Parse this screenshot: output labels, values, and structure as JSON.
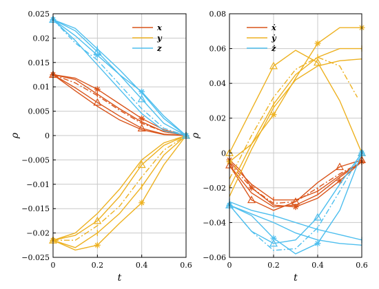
{
  "chart_data": [
    {
      "type": "line",
      "xlabel": "t",
      "ylabel": "ρ",
      "xlim": [
        0,
        0.6
      ],
      "ylim": [
        -0.025,
        0.025
      ],
      "xticks": [
        "0",
        "0.2",
        "0.4",
        "0.6"
      ],
      "yticks": [
        "-0.025",
        "-0.02",
        "-0.015",
        "-0.01",
        "-0.005",
        "0",
        "0.005",
        "0.01",
        "0.015",
        "0.02",
        "0.025"
      ],
      "grid": true,
      "legend_position": "top-right",
      "legend": [
        {
          "label": "x",
          "color": "#d95319"
        },
        {
          "label": "y",
          "color": "#edb120"
        },
        {
          "label": "z",
          "color": "#4dbeee"
        }
      ],
      "series": [
        {
          "group": "x",
          "color": "#d95319",
          "style": "solid",
          "marker": "asterisk",
          "x": [
            0,
            0.1,
            0.2,
            0.3,
            0.4,
            0.5,
            0.6
          ],
          "y": [
            0.0125,
            0.0118,
            0.0095,
            0.0065,
            0.0035,
            0.0012,
            0
          ]
        },
        {
          "group": "x",
          "color": "#d95319",
          "style": "solid",
          "marker": "tick",
          "x": [
            0,
            0.1,
            0.2,
            0.3,
            0.4,
            0.5,
            0.6
          ],
          "y": [
            0.0125,
            0.0115,
            0.0085,
            0.0055,
            0.0028,
            0.0008,
            0
          ]
        },
        {
          "group": "x",
          "color": "#d95319",
          "style": "dashdot",
          "marker": "none",
          "x": [
            0,
            0.1,
            0.2,
            0.3,
            0.4,
            0.5,
            0.6
          ],
          "y": [
            0.0125,
            0.0108,
            0.0082,
            0.0052,
            0.0025,
            0.0008,
            0
          ]
        },
        {
          "group": "x",
          "color": "#d95319",
          "style": "solid",
          "marker": "triangle",
          "x": [
            0,
            0.1,
            0.2,
            0.3,
            0.4,
            0.5,
            0.6
          ],
          "y": [
            0.0125,
            0.0098,
            0.0068,
            0.004,
            0.0015,
            0.0003,
            0
          ]
        },
        {
          "group": "x",
          "color": "#d95319",
          "style": "solid",
          "marker": "none",
          "x": [
            0,
            0.1,
            0.2,
            0.3,
            0.4,
            0.5,
            0.6
          ],
          "y": [
            0.0125,
            0.0092,
            0.006,
            0.0032,
            0.0012,
            0.0002,
            0
          ]
        },
        {
          "group": "y",
          "color": "#edb120",
          "style": "solid",
          "marker": "asterisk",
          "x": [
            0,
            0.1,
            0.2,
            0.3,
            0.4,
            0.5,
            0.6
          ],
          "y": [
            -0.0215,
            -0.0235,
            -0.0225,
            -0.018,
            -0.0138,
            -0.006,
            0
          ]
        },
        {
          "group": "y",
          "color": "#edb120",
          "style": "solid",
          "marker": "tick",
          "x": [
            0,
            0.1,
            0.2,
            0.3,
            0.4,
            0.5,
            0.6
          ],
          "y": [
            -0.0215,
            -0.023,
            -0.02,
            -0.016,
            -0.0105,
            -0.004,
            0
          ]
        },
        {
          "group": "y",
          "color": "#edb120",
          "style": "dashdot",
          "marker": "none",
          "x": [
            0,
            0.1,
            0.2,
            0.3,
            0.4,
            0.5,
            0.6
          ],
          "y": [
            -0.0215,
            -0.0215,
            -0.0185,
            -0.0145,
            -0.0085,
            -0.003,
            0
          ]
        },
        {
          "group": "y",
          "color": "#edb120",
          "style": "solid",
          "marker": "triangle",
          "x": [
            0,
            0.1,
            0.2,
            0.3,
            0.4,
            0.5,
            0.6
          ],
          "y": [
            -0.0215,
            -0.0205,
            -0.0175,
            -0.0125,
            -0.006,
            -0.002,
            0
          ]
        },
        {
          "group": "y",
          "color": "#edb120",
          "style": "solid",
          "marker": "none",
          "x": [
            0,
            0.1,
            0.2,
            0.3,
            0.4,
            0.5,
            0.6
          ],
          "y": [
            -0.0215,
            -0.02,
            -0.016,
            -0.011,
            -0.005,
            -0.0015,
            0
          ]
        },
        {
          "group": "z",
          "color": "#4dbeee",
          "style": "solid",
          "marker": "triangle",
          "x": [
            0,
            0.1,
            0.2,
            0.3,
            0.4,
            0.5,
            0.6
          ],
          "y": [
            0.0238,
            0.0215,
            0.0172,
            0.0125,
            0.0075,
            0.0025,
            0
          ]
        },
        {
          "group": "z",
          "color": "#4dbeee",
          "style": "solid",
          "marker": "tick",
          "x": [
            0,
            0.1,
            0.2,
            0.3,
            0.4,
            0.5,
            0.6
          ],
          "y": [
            0.0238,
            0.022,
            0.0178,
            0.0135,
            0.0088,
            0.0035,
            0
          ]
        },
        {
          "group": "z",
          "color": "#4dbeee",
          "style": "solid",
          "marker": "asterisk",
          "x": [
            0,
            0.1,
            0.2,
            0.3,
            0.4,
            0.5,
            0.6
          ],
          "y": [
            0.0238,
            0.0205,
            0.0165,
            0.0125,
            0.009,
            0.004,
            0
          ]
        },
        {
          "group": "z",
          "color": "#4dbeee",
          "style": "dashdot",
          "marker": "none",
          "x": [
            0,
            0.1,
            0.2,
            0.3,
            0.4,
            0.5,
            0.6
          ],
          "y": [
            0.0238,
            0.019,
            0.0155,
            0.0105,
            0.0055,
            0.0015,
            0
          ]
        },
        {
          "group": "z",
          "color": "#4dbeee",
          "style": "solid",
          "marker": "none",
          "x": [
            0,
            0.1,
            0.2,
            0.3,
            0.4,
            0.5,
            0.6
          ],
          "y": [
            0.0238,
            0.0195,
            0.0145,
            0.0095,
            0.0045,
            0.001,
            0
          ]
        }
      ]
    },
    {
      "type": "line",
      "xlabel": "t",
      "ylabel": "ρ",
      "xlim": [
        0,
        0.6
      ],
      "ylim": [
        -0.06,
        0.08
      ],
      "xticks": [
        "0",
        "0.2",
        "0.4",
        "0.6"
      ],
      "yticks": [
        "-0.06",
        "-0.04",
        "-0.02",
        "0",
        "0.02",
        "0.04",
        "0.06",
        "0.08"
      ],
      "grid": true,
      "legend_position": "top-left",
      "legend": [
        {
          "label": "ẋ",
          "color": "#d95319"
        },
        {
          "label": "ẏ",
          "color": "#edb120"
        },
        {
          "label": "ż",
          "color": "#4dbeee"
        }
      ],
      "series": [
        {
          "group": "xdot",
          "color": "#d95319",
          "style": "solid",
          "marker": "triangle",
          "x": [
            0,
            0.05,
            0.1,
            0.2,
            0.3,
            0.4,
            0.5,
            0.6
          ],
          "y": [
            -0.007,
            -0.017,
            -0.027,
            -0.033,
            -0.028,
            -0.017,
            -0.008,
            -0.004
          ]
        },
        {
          "group": "xdot",
          "color": "#d95319",
          "style": "solid",
          "marker": "asterisk",
          "x": [
            0,
            0.05,
            0.1,
            0.2,
            0.3,
            0.4,
            0.5,
            0.6
          ],
          "y": [
            -0.004,
            -0.01,
            -0.02,
            -0.03,
            -0.031,
            -0.026,
            -0.016,
            -0.005
          ]
        },
        {
          "group": "xdot",
          "color": "#d95319",
          "style": "solid",
          "marker": "tick",
          "x": [
            0,
            0.1,
            0.2,
            0.3,
            0.4,
            0.5,
            0.6
          ],
          "y": [
            -0.005,
            -0.018,
            -0.027,
            -0.027,
            -0.022,
            -0.013,
            -0.005
          ]
        },
        {
          "group": "xdot",
          "color": "#d95319",
          "style": "dashdot",
          "marker": "none",
          "x": [
            0,
            0.1,
            0.2,
            0.3,
            0.4,
            0.5,
            0.6
          ],
          "y": [
            -0.006,
            -0.02,
            -0.029,
            -0.028,
            -0.02,
            -0.012,
            -0.005
          ]
        },
        {
          "group": "xdot",
          "color": "#d95319",
          "style": "solid",
          "marker": "none",
          "x": [
            0,
            0.1,
            0.2,
            0.3,
            0.4,
            0.5,
            0.6
          ],
          "y": [
            -0.007,
            -0.023,
            -0.031,
            -0.03,
            -0.024,
            -0.014,
            -0.005
          ]
        },
        {
          "group": "ydot",
          "color": "#edb120",
          "style": "solid",
          "marker": "asterisk",
          "x": [
            0,
            0.1,
            0.2,
            0.3,
            0.4,
            0.5,
            0.6
          ],
          "y": [
            -0.005,
            0.005,
            0.022,
            0.043,
            0.063,
            0.072,
            0.072
          ]
        },
        {
          "group": "ydot",
          "color": "#edb120",
          "style": "solid",
          "marker": "triangle",
          "x": [
            0,
            0.1,
            0.2,
            0.3,
            0.4,
            0.5,
            0.6
          ],
          "y": [
            0,
            0.025,
            0.05,
            0.059,
            0.052,
            0.03,
            0
          ]
        },
        {
          "group": "ydot",
          "color": "#edb120",
          "style": "dashdot",
          "marker": "none",
          "x": [
            0,
            0.1,
            0.2,
            0.3,
            0.4,
            0.5,
            0.58
          ],
          "y": [
            -0.015,
            0.01,
            0.032,
            0.048,
            0.055,
            0.05,
            0.032
          ]
        },
        {
          "group": "ydot",
          "color": "#edb120",
          "style": "solid",
          "marker": "tick",
          "x": [
            0,
            0.1,
            0.2,
            0.3,
            0.4,
            0.5,
            0.6
          ],
          "y": [
            -0.02,
            0.005,
            0.028,
            0.045,
            0.055,
            0.06,
            0.06
          ]
        },
        {
          "group": "ydot",
          "color": "#edb120",
          "style": "solid",
          "marker": "none",
          "x": [
            0,
            0.1,
            0.2,
            0.3,
            0.4,
            0.5,
            0.6
          ],
          "y": [
            -0.025,
            0.002,
            0.026,
            0.042,
            0.05,
            0.053,
            0.054
          ]
        },
        {
          "group": "zdot",
          "color": "#4dbeee",
          "style": "solid",
          "marker": "triangle",
          "x": [
            0,
            0.1,
            0.2,
            0.3,
            0.4,
            0.5,
            0.6
          ],
          "y": [
            -0.03,
            -0.045,
            -0.052,
            -0.05,
            -0.037,
            -0.018,
            0
          ]
        },
        {
          "group": "zdot",
          "color": "#4dbeee",
          "style": "dashdot",
          "marker": "none",
          "x": [
            0,
            0.1,
            0.2,
            0.3,
            0.4,
            0.5,
            0.6
          ],
          "y": [
            -0.03,
            -0.045,
            -0.056,
            -0.055,
            -0.043,
            -0.022,
            0
          ]
        },
        {
          "group": "zdot",
          "color": "#4dbeee",
          "style": "solid",
          "marker": "asterisk",
          "x": [
            0,
            0.1,
            0.2,
            0.3,
            0.4,
            0.5,
            0.6
          ],
          "y": [
            -0.03,
            -0.036,
            -0.049,
            -0.058,
            -0.052,
            -0.033,
            0
          ]
        },
        {
          "group": "zdot",
          "color": "#4dbeee",
          "style": "solid",
          "marker": "tick",
          "x": [
            0,
            0.1,
            0.2,
            0.3,
            0.4,
            0.5,
            0.6
          ],
          "y": [
            -0.028,
            -0.033,
            -0.036,
            -0.04,
            -0.044,
            -0.047,
            -0.05
          ]
        },
        {
          "group": "zdot",
          "color": "#4dbeee",
          "style": "solid",
          "marker": "none",
          "x": [
            0,
            0.1,
            0.2,
            0.3,
            0.4,
            0.5,
            0.6
          ],
          "y": [
            -0.03,
            -0.035,
            -0.04,
            -0.046,
            -0.05,
            -0.052,
            -0.053
          ]
        }
      ]
    }
  ]
}
